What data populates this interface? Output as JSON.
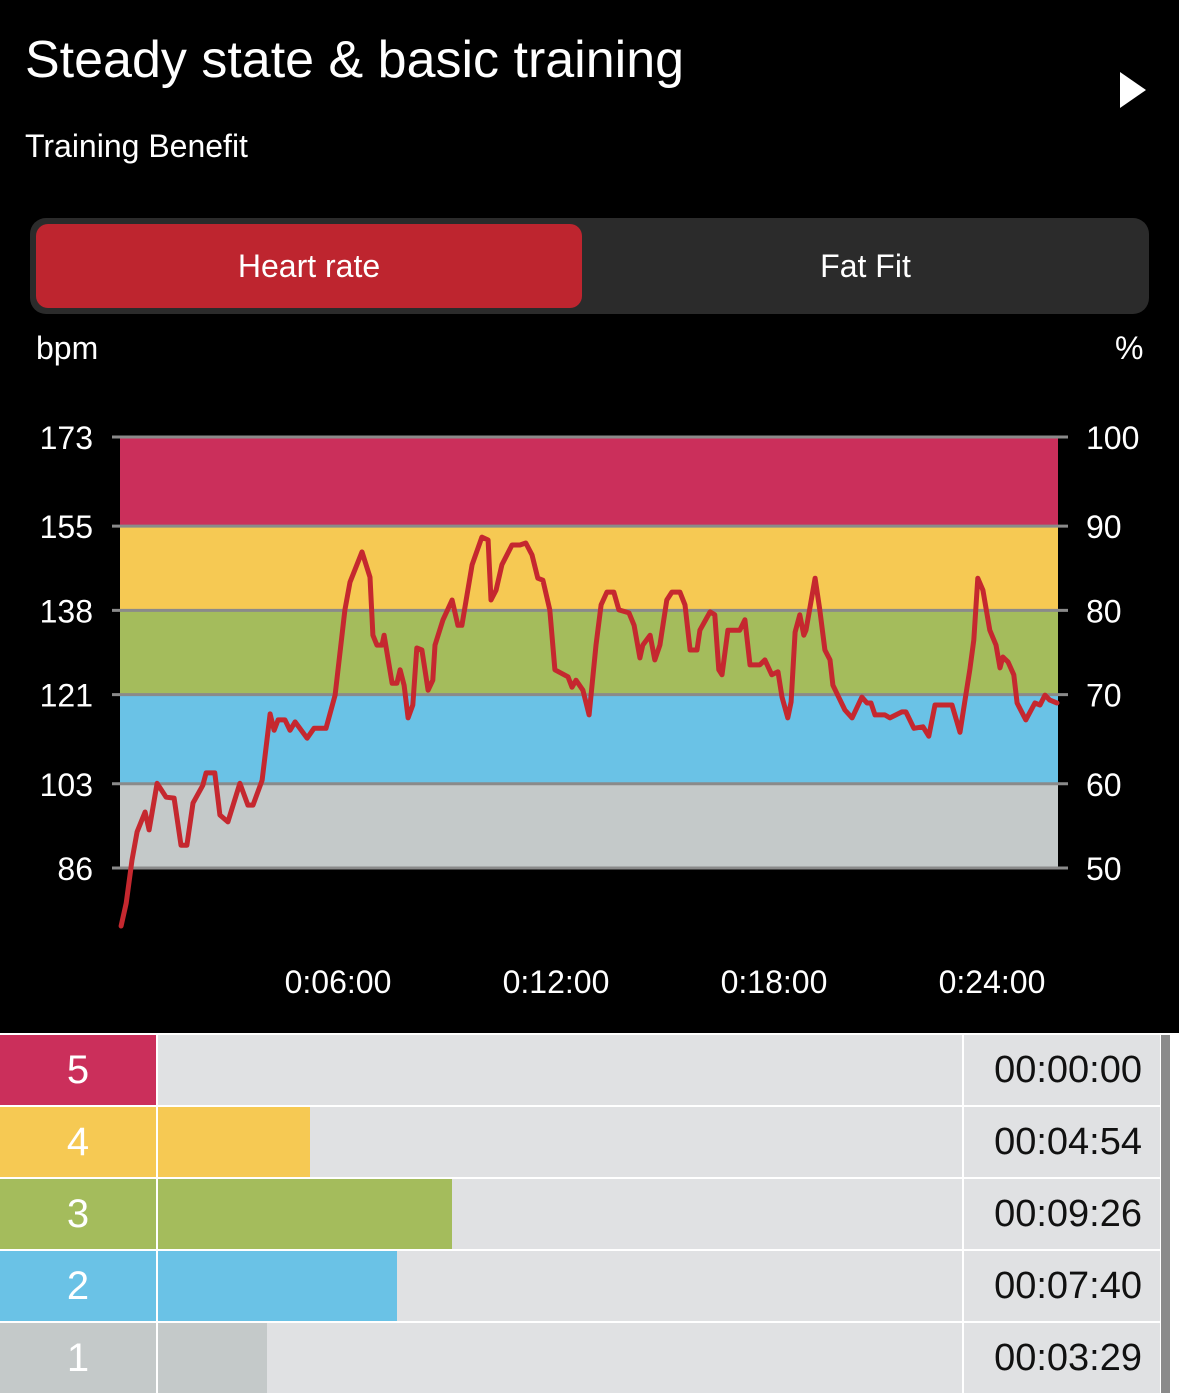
{
  "header": {
    "title": "Steady state & basic training",
    "subtitle": "Training Benefit",
    "next_icon": "play-triangle-icon"
  },
  "toggle": {
    "options": [
      "Heart rate",
      "Fat Fit"
    ],
    "selected": "Heart rate"
  },
  "colors": {
    "zone5": "#cb2f5b",
    "zone4": "#f6c953",
    "zone3": "#a4bc5c",
    "zone2": "#6ac2e6",
    "zone1": "#c4c9c9",
    "line": "#c5282f",
    "accent": "#be252f"
  },
  "chart_data": {
    "type": "line",
    "left_unit": "bpm",
    "right_unit": "%",
    "left_ticks": [
      173,
      155,
      138,
      121,
      103,
      86
    ],
    "right_ticks": [
      100,
      90,
      80,
      70,
      60,
      50
    ],
    "ylim": [
      86,
      173
    ],
    "x_ticks": [
      {
        "minutes": 6,
        "label": "0:06:00"
      },
      {
        "minutes": 12,
        "label": "0:12:00"
      },
      {
        "minutes": 18,
        "label": "0:18:00"
      },
      {
        "minutes": 24,
        "label": "0:24:00"
      }
    ],
    "xlim_minutes": [
      0,
      25.85
    ],
    "zones": [
      {
        "zone": 5,
        "from": 155,
        "to": 173
      },
      {
        "zone": 4,
        "from": 138,
        "to": 155
      },
      {
        "zone": 3,
        "from": 121,
        "to": 138
      },
      {
        "zone": 2,
        "from": 103,
        "to": 121
      },
      {
        "zone": 1,
        "from": 86,
        "to": 103
      }
    ],
    "series": [
      {
        "name": "Heart rate",
        "points_minutes_bpm": [
          [
            0.03,
            74.3
          ],
          [
            0.17,
            78.9
          ],
          [
            0.33,
            87.6
          ],
          [
            0.47,
            93.3
          ],
          [
            0.69,
            97.3
          ],
          [
            0.8,
            93.7
          ],
          [
            1.02,
            103.1
          ],
          [
            1.27,
            100.3
          ],
          [
            1.49,
            100.1
          ],
          [
            1.68,
            90.6
          ],
          [
            1.84,
            90.6
          ],
          [
            2.01,
            99.1
          ],
          [
            2.28,
            102.7
          ],
          [
            2.37,
            105.2
          ],
          [
            2.61,
            105.2
          ],
          [
            2.75,
            96.7
          ],
          [
            2.97,
            95.3
          ],
          [
            3.3,
            103.1
          ],
          [
            3.52,
            98.7
          ],
          [
            3.66,
            98.7
          ],
          [
            3.91,
            103.7
          ],
          [
            4.13,
            117.1
          ],
          [
            4.24,
            113.8
          ],
          [
            4.35,
            115.9
          ],
          [
            4.54,
            115.9
          ],
          [
            4.68,
            113.8
          ],
          [
            4.82,
            115.5
          ],
          [
            5.15,
            112.2
          ],
          [
            5.34,
            114.2
          ],
          [
            5.67,
            114.2
          ],
          [
            5.92,
            120.9
          ],
          [
            6.19,
            138.1
          ],
          [
            6.33,
            143.7
          ],
          [
            6.66,
            149.8
          ],
          [
            6.88,
            144.7
          ],
          [
            6.96,
            133.0
          ],
          [
            7.07,
            131.0
          ],
          [
            7.21,
            131.0
          ],
          [
            7.27,
            133.0
          ],
          [
            7.49,
            123.3
          ],
          [
            7.62,
            123.3
          ],
          [
            7.71,
            126.0
          ],
          [
            7.82,
            122.9
          ],
          [
            7.93,
            116.3
          ],
          [
            8.06,
            118.9
          ],
          [
            8.17,
            130.4
          ],
          [
            8.31,
            130.0
          ],
          [
            8.48,
            121.9
          ],
          [
            8.61,
            123.9
          ],
          [
            8.67,
            131.0
          ],
          [
            8.89,
            136.1
          ],
          [
            9.14,
            140.1
          ],
          [
            9.3,
            135.0
          ],
          [
            9.41,
            135.0
          ],
          [
            9.69,
            147.2
          ],
          [
            9.96,
            152.8
          ],
          [
            10.13,
            152.2
          ],
          [
            10.21,
            140.1
          ],
          [
            10.35,
            142.1
          ],
          [
            10.51,
            147.2
          ],
          [
            10.79,
            151.2
          ],
          [
            11.01,
            151.2
          ],
          [
            11.17,
            151.6
          ],
          [
            11.34,
            149.2
          ],
          [
            11.5,
            144.5
          ],
          [
            11.64,
            144.1
          ],
          [
            11.83,
            138.1
          ],
          [
            11.97,
            126.0
          ],
          [
            12.33,
            124.6
          ],
          [
            12.44,
            122.5
          ],
          [
            12.55,
            123.9
          ],
          [
            12.74,
            121.9
          ],
          [
            12.91,
            116.9
          ],
          [
            13.1,
            131.0
          ],
          [
            13.24,
            139.1
          ],
          [
            13.4,
            141.7
          ],
          [
            13.59,
            141.7
          ],
          [
            13.73,
            138.1
          ],
          [
            14.01,
            137.5
          ],
          [
            14.15,
            135.0
          ],
          [
            14.31,
            128.4
          ],
          [
            14.39,
            131.0
          ],
          [
            14.59,
            133.0
          ],
          [
            14.72,
            128.0
          ],
          [
            14.86,
            131.0
          ],
          [
            15.05,
            140.1
          ],
          [
            15.19,
            141.7
          ],
          [
            15.41,
            141.7
          ],
          [
            15.55,
            139.1
          ],
          [
            15.69,
            130.0
          ],
          [
            15.88,
            130.0
          ],
          [
            15.96,
            134.0
          ],
          [
            16.24,
            137.7
          ],
          [
            16.37,
            137.1
          ],
          [
            16.48,
            126.0
          ],
          [
            16.57,
            125.0
          ],
          [
            16.73,
            134.0
          ],
          [
            17.06,
            134.0
          ],
          [
            17.2,
            136.1
          ],
          [
            17.34,
            127.0
          ],
          [
            17.61,
            127.0
          ],
          [
            17.75,
            128.0
          ],
          [
            17.94,
            125.0
          ],
          [
            18.11,
            125.6
          ],
          [
            18.22,
            120.5
          ],
          [
            18.38,
            116.3
          ],
          [
            18.47,
            119.5
          ],
          [
            18.58,
            133.6
          ],
          [
            18.71,
            137.1
          ],
          [
            18.82,
            133.0
          ],
          [
            18.88,
            134.0
          ],
          [
            19.13,
            144.5
          ],
          [
            19.26,
            138.1
          ],
          [
            19.4,
            130.0
          ],
          [
            19.54,
            128.0
          ],
          [
            19.62,
            122.9
          ],
          [
            19.95,
            117.9
          ],
          [
            20.15,
            116.3
          ],
          [
            20.42,
            120.5
          ],
          [
            20.56,
            119.3
          ],
          [
            20.67,
            119.3
          ],
          [
            20.78,
            116.9
          ],
          [
            21.05,
            116.9
          ],
          [
            21.19,
            116.3
          ],
          [
            21.52,
            117.5
          ],
          [
            21.63,
            117.5
          ],
          [
            21.85,
            114.2
          ],
          [
            22.1,
            114.5
          ],
          [
            22.26,
            112.6
          ],
          [
            22.43,
            118.9
          ],
          [
            22.9,
            118.9
          ],
          [
            23.12,
            113.4
          ],
          [
            23.28,
            120.9
          ],
          [
            23.39,
            126.0
          ],
          [
            23.5,
            132.0
          ],
          [
            23.61,
            144.5
          ],
          [
            23.75,
            142.1
          ],
          [
            23.94,
            134.0
          ],
          [
            24.11,
            131.0
          ],
          [
            24.22,
            126.4
          ],
          [
            24.3,
            128.6
          ],
          [
            24.44,
            127.6
          ],
          [
            24.6,
            125.0
          ],
          [
            24.69,
            119.3
          ],
          [
            24.93,
            115.9
          ],
          [
            25.18,
            119.3
          ],
          [
            25.32,
            118.9
          ],
          [
            25.46,
            120.9
          ],
          [
            25.59,
            119.9
          ],
          [
            25.79,
            119.3
          ]
        ]
      }
    ]
  },
  "zone_times": [
    {
      "zone": "5",
      "time": "00:00:00",
      "fill": 0.0
    },
    {
      "zone": "4",
      "time": "00:04:54",
      "fill": 0.189
    },
    {
      "zone": "3",
      "time": "00:09:26",
      "fill": 0.366
    },
    {
      "zone": "2",
      "time": "00:07:40",
      "fill": 0.297
    },
    {
      "zone": "1",
      "time": "00:03:29",
      "fill": 0.135
    }
  ]
}
